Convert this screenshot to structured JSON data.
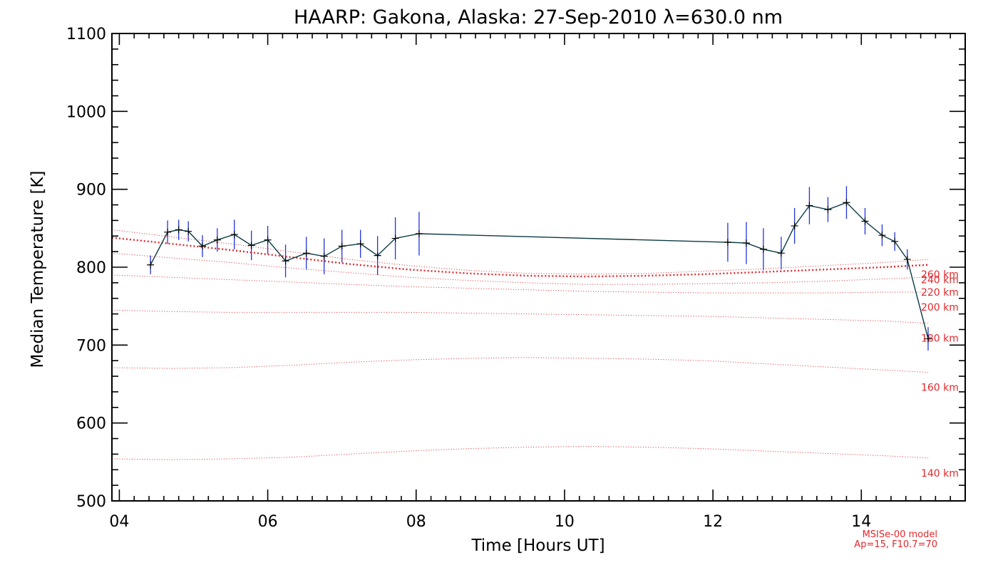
{
  "chart_data": {
    "type": "line",
    "title": "HAARP: Gakona,  Alaska: 27-Sep-2010 λ=630.0 nm",
    "xlabel": "Time [Hours UT]",
    "ylabel": "Median Temperature [K]",
    "xlim": [
      3.9,
      15.4
    ],
    "ylim": [
      500,
      1100
    ],
    "xticks": [
      4,
      6,
      8,
      10,
      12,
      14
    ],
    "xtick_labels": [
      "04",
      "06",
      "08",
      "10",
      "12",
      "14"
    ],
    "yticks": [
      500,
      600,
      700,
      800,
      900,
      1000,
      1100
    ],
    "ytick_labels": [
      "500",
      "600",
      "700",
      "800",
      "900",
      "1000",
      "1100"
    ],
    "grid": false,
    "colors": {
      "measured": "#0b3a44",
      "error_bars": "#2233dd",
      "model": "#e0282c",
      "axes": "#000000"
    },
    "series": [
      {
        "x": [
          4.42,
          4.65,
          4.8,
          4.93,
          5.12,
          5.32,
          5.55,
          5.78,
          6.0,
          6.24,
          6.52,
          6.76,
          7.0,
          7.25,
          7.48,
          7.72,
          8.04,
          12.2,
          12.45,
          12.68,
          12.92,
          13.1,
          13.3,
          13.55,
          13.8,
          14.05,
          14.28,
          14.45,
          14.62,
          14.9
        ],
        "y": [
          803,
          845,
          848,
          846,
          827,
          835,
          842,
          828,
          835,
          808,
          818,
          814,
          827,
          830,
          815,
          837,
          843,
          832,
          831,
          823,
          818,
          853,
          879,
          874,
          883,
          859,
          841,
          833,
          810,
          708
        ],
        "err": [
          12,
          15,
          13,
          13,
          14,
          15,
          19,
          19,
          18,
          21,
          21,
          23,
          21,
          18,
          25,
          27,
          28,
          25,
          27,
          27,
          21,
          23,
          24,
          16,
          21,
          17,
          14,
          12,
          13,
          15
        ]
      }
    ],
    "model_curves": [
      {
        "label": "140 km",
        "y": [
          554,
          553,
          554,
          556,
          560,
          564,
          567,
          569,
          570,
          569,
          567,
          564,
          561,
          558,
          555
        ]
      },
      {
        "label": "160 km",
        "y": [
          671,
          670,
          671,
          674,
          678,
          681,
          683,
          684,
          683,
          682,
          680,
          676,
          672,
          668,
          665
        ]
      },
      {
        "label": "180 km",
        "y": [
          745,
          743,
          742,
          742,
          742,
          742,
          741,
          740,
          739,
          738,
          737,
          735,
          733,
          731,
          728
        ]
      },
      {
        "label": "200 km",
        "y": [
          790,
          787,
          784,
          781,
          778,
          775,
          773,
          771,
          769,
          768,
          767,
          767,
          767,
          768,
          768
        ]
      },
      {
        "label": "220 km",
        "y": [
          818,
          812,
          806,
          799,
          793,
          787,
          783,
          780,
          778,
          778,
          779,
          780,
          782,
          785,
          787
        ]
      },
      {
        "label": "240 km",
        "y": [
          838,
          830,
          822,
          813,
          804,
          797,
          792,
          789,
          788,
          789,
          791,
          794,
          797,
          800,
          803
        ]
      },
      {
        "label": "260 km",
        "y": [
          848,
          839,
          830,
          820,
          810,
          802,
          796,
          792,
          791,
          792,
          795,
          798,
          802,
          806,
          810
        ]
      }
    ],
    "model_x": [
      3.9,
      4.7,
      5.5,
      6.3,
      7.1,
      7.9,
      8.7,
      9.5,
      10.3,
      11.1,
      11.9,
      12.7,
      13.5,
      14.3,
      14.9
    ],
    "model_highlight": "240 km",
    "model_note": [
      "MSISe-00 model",
      "Ap=15, F10.7=70"
    ]
  }
}
